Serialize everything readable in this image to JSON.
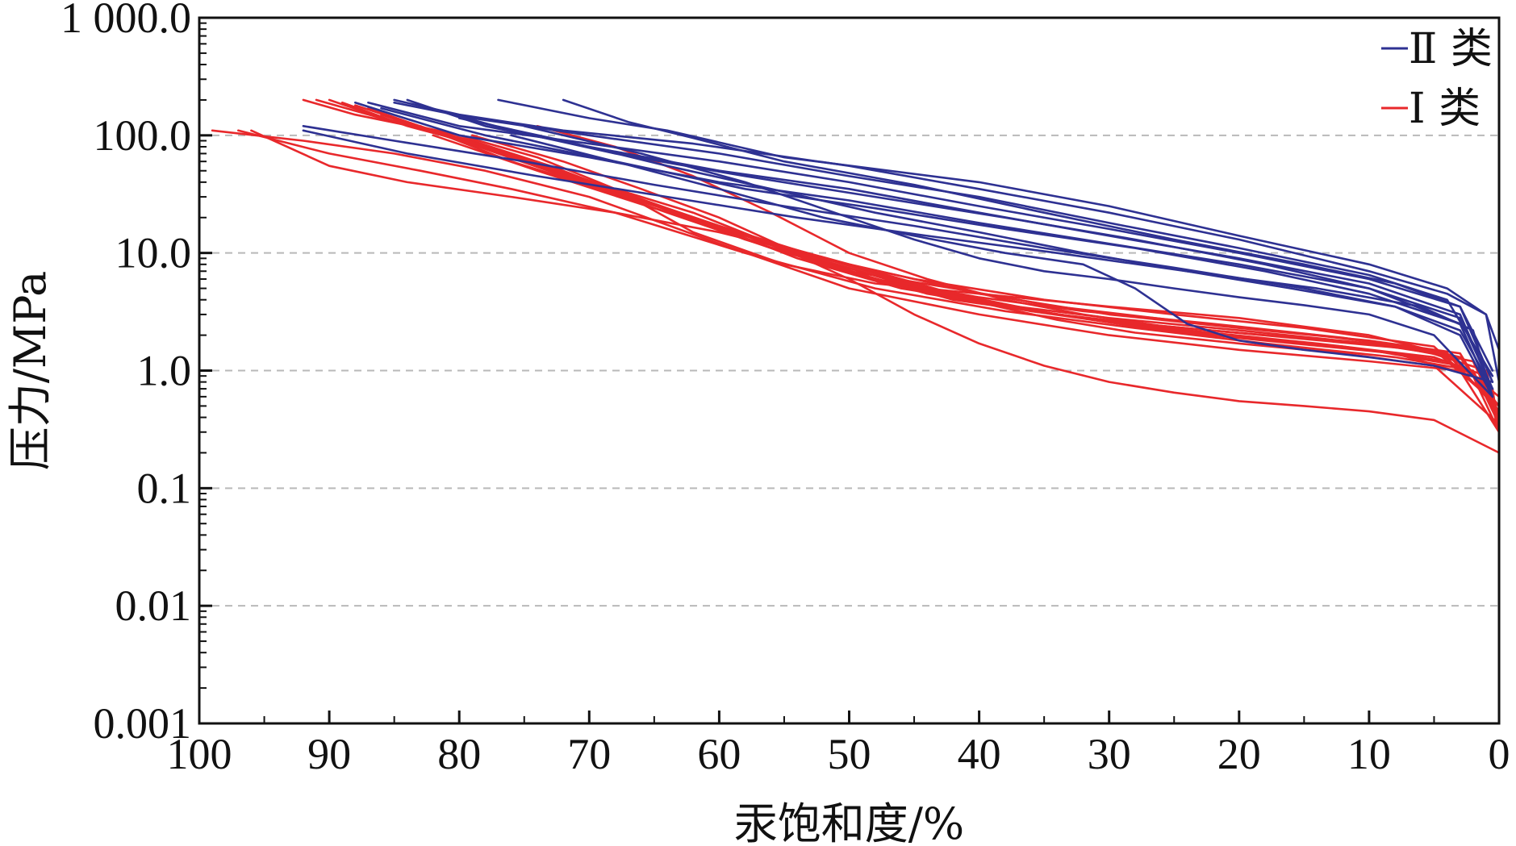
{
  "chart_data": {
    "type": "line",
    "xlabel": "汞饱和度/%",
    "ylabel": "压力/MPa",
    "x_reversed": true,
    "xlim": [
      100,
      0
    ],
    "ylim": [
      0.001,
      1000
    ],
    "y_scale": "log",
    "x_ticks": [
      100,
      90,
      80,
      70,
      60,
      50,
      40,
      30,
      20,
      10,
      0
    ],
    "x_tick_labels": [
      "100",
      "90",
      "80",
      "70",
      "60",
      "50",
      "40",
      "30",
      "20",
      "10",
      "0"
    ],
    "y_ticks": [
      0.001,
      0.01,
      0.1,
      1,
      10,
      100,
      1000
    ],
    "y_tick_labels": [
      "0.001",
      "0.01",
      "0.1",
      "1.0",
      "10.0",
      "100.0",
      "1 000.0"
    ],
    "grid": "horizontal dashed at y ticks",
    "legend_position": "top-right",
    "legend": [
      {
        "label": "Ⅱ 类",
        "color": "#2e3192"
      },
      {
        "label": "Ⅰ 类",
        "color": "#e8282b"
      }
    ],
    "series": [
      {
        "group": "Ⅱ 类",
        "color": "#2e3192",
        "x": [
          77,
          70,
          64,
          55,
          40,
          30,
          20,
          10,
          4,
          1,
          0
        ],
        "y": [
          200,
          140,
          110,
          65,
          40,
          25,
          14,
          8,
          5,
          3,
          1.5
        ]
      },
      {
        "group": "Ⅱ 类",
        "color": "#2e3192",
        "x": [
          72,
          67,
          62,
          55,
          45,
          35,
          25,
          15,
          8,
          3,
          0.5
        ],
        "y": [
          200,
          130,
          95,
          60,
          38,
          22,
          13,
          8,
          5.5,
          3.5,
          1.0
        ]
      },
      {
        "group": "Ⅱ 类",
        "color": "#2e3192",
        "x": [
          85,
          80,
          72,
          62,
          50,
          40,
          30,
          20,
          10,
          4,
          1,
          0
        ],
        "y": [
          200,
          150,
          110,
          85,
          55,
          35,
          22,
          13,
          7,
          4.5,
          3,
          0.8
        ]
      },
      {
        "group": "Ⅱ 类",
        "color": "#2e3192",
        "x": [
          85,
          79,
          70,
          60,
          50,
          40,
          30,
          20,
          10,
          4,
          0.5
        ],
        "y": [
          190,
          140,
          100,
          70,
          45,
          30,
          18,
          11,
          6.5,
          4,
          0.9
        ]
      },
      {
        "group": "Ⅱ 类",
        "color": "#2e3192",
        "x": [
          87,
          80,
          70,
          60,
          50,
          40,
          30,
          20,
          10,
          3,
          0.5
        ],
        "y": [
          190,
          120,
          85,
          60,
          40,
          25,
          16,
          10,
          6,
          3.5,
          0.8
        ]
      },
      {
        "group": "Ⅱ 类",
        "color": "#2e3192",
        "x": [
          84,
          78,
          70,
          60,
          50,
          40,
          30,
          20,
          10,
          3,
          0.5
        ],
        "y": [
          200,
          120,
          80,
          50,
          35,
          22,
          14,
          9,
          5.5,
          3,
          0.7
        ]
      },
      {
        "group": "Ⅱ 类",
        "color": "#2e3192",
        "x": [
          83,
          76,
          68,
          58,
          48,
          38,
          28,
          18,
          10,
          3,
          0.5
        ],
        "y": [
          180,
          110,
          70,
          45,
          30,
          20,
          13,
          8,
          5,
          2.5,
          0.6
        ]
      },
      {
        "group": "Ⅱ 类",
        "color": "#2e3192",
        "x": [
          88,
          80,
          70,
          60,
          50,
          40,
          30,
          20,
          10,
          3,
          0.5
        ],
        "y": [
          190,
          100,
          65,
          40,
          28,
          18,
          12,
          8,
          5,
          2.8,
          0.7
        ]
      },
      {
        "group": "Ⅱ 类",
        "color": "#2e3192",
        "x": [
          86,
          78,
          68,
          58,
          48,
          38,
          28,
          18,
          10,
          3,
          0.5
        ],
        "y": [
          170,
          100,
          60,
          35,
          24,
          16,
          11,
          7,
          4.5,
          2.5,
          0.6
        ]
      },
      {
        "group": "Ⅱ 类",
        "color": "#2e3192",
        "x": [
          92,
          85,
          75,
          65,
          55,
          45,
          35,
          25,
          15,
          8,
          3,
          0.5
        ],
        "y": [
          120,
          90,
          60,
          38,
          25,
          17,
          11,
          7.5,
          5,
          3.5,
          2,
          0.6
        ]
      },
      {
        "group": "Ⅱ 类",
        "color": "#2e3192",
        "x": [
          80,
          72,
          64,
          56,
          48,
          40,
          32,
          24,
          16,
          8,
          3,
          0.5
        ],
        "y": [
          140,
          90,
          55,
          35,
          22,
          15,
          10,
          7,
          5,
          3.5,
          2.2,
          0.7
        ]
      },
      {
        "group": "Ⅱ 类",
        "color": "#2e3192",
        "x": [
          75,
          66,
          58,
          50,
          45,
          40,
          35,
          30,
          25,
          20,
          15,
          10,
          5,
          0.5
        ],
        "y": [
          120,
          70,
          40,
          20,
          13,
          9,
          7,
          6,
          5,
          4.2,
          3.6,
          3,
          2,
          0.6
        ]
      },
      {
        "group": "Ⅱ 类",
        "color": "#2e3192",
        "x": [
          76,
          68,
          60,
          52,
          45,
          38,
          32,
          28,
          24,
          20,
          15,
          10,
          5,
          0.5
        ],
        "y": [
          100,
          60,
          35,
          20,
          14,
          10,
          8,
          5,
          2.5,
          1.8,
          1.5,
          1.3,
          1.1,
          0.8
        ]
      },
      {
        "group": "Ⅱ 类",
        "color": "#2e3192",
        "x": [
          92,
          84,
          74,
          64,
          54,
          44,
          34,
          24,
          14,
          6,
          2,
          0.5
        ],
        "y": [
          110,
          70,
          45,
          30,
          20,
          14,
          10,
          7,
          5,
          3.5,
          2.2,
          0.6
        ]
      },
      {
        "group": "Ⅰ 类",
        "color": "#e8282b",
        "x": [
          99,
          92,
          85,
          78,
          70,
          60,
          50,
          40,
          30,
          20,
          10,
          3,
          0
        ],
        "y": [
          110,
          90,
          70,
          50,
          30,
          12,
          5,
          3,
          2,
          1.5,
          1.2,
          1.0,
          0.3
        ]
      },
      {
        "group": "Ⅰ 类",
        "color": "#e8282b",
        "x": [
          97,
          90,
          83,
          76,
          68,
          58,
          48,
          38,
          28,
          18,
          8,
          2,
          0
        ],
        "y": [
          110,
          70,
          50,
          35,
          22,
          10,
          5,
          3.2,
          2.3,
          1.7,
          1.3,
          1.0,
          0.35
        ]
      },
      {
        "group": "Ⅰ 类",
        "color": "#e8282b",
        "x": [
          96,
          90,
          84,
          76,
          68,
          60,
          50,
          40,
          30,
          20,
          10,
          3,
          0
        ],
        "y": [
          110,
          55,
          40,
          30,
          22,
          15,
          8,
          4.5,
          3,
          2.3,
          1.8,
          1.4,
          0.4
        ]
      },
      {
        "group": "Ⅰ 类",
        "color": "#e8282b",
        "x": [
          92,
          88,
          82,
          76,
          70,
          62,
          54,
          45,
          35,
          25,
          15,
          5,
          0
        ],
        "y": [
          200,
          150,
          110,
          70,
          40,
          20,
          10,
          6,
          4,
          3,
          2.3,
          1.6,
          0.5
        ]
      },
      {
        "group": "Ⅰ 类",
        "color": "#e8282b",
        "x": [
          91,
          86,
          80,
          74,
          68,
          62,
          55,
          48,
          40,
          30,
          20,
          10,
          3,
          0
        ],
        "y": [
          200,
          140,
          100,
          65,
          35,
          15,
          8,
          5.5,
          4.5,
          3.5,
          2.8,
          2,
          1.3,
          0.5
        ]
      },
      {
        "group": "Ⅰ 类",
        "color": "#e8282b",
        "x": [
          90,
          85,
          79,
          73,
          66,
          58,
          50,
          42,
          34,
          24,
          14,
          5,
          0
        ],
        "y": [
          200,
          130,
          90,
          55,
          28,
          13,
          7,
          5,
          3.5,
          2.6,
          2,
          1.5,
          0.5
        ]
      },
      {
        "group": "Ⅰ 类",
        "color": "#e8282b",
        "x": [
          89,
          84,
          78,
          72,
          64,
          56,
          48,
          40,
          32,
          22,
          12,
          4,
          0
        ],
        "y": [
          190,
          120,
          80,
          45,
          22,
          11,
          6,
          4.2,
          3.2,
          2.5,
          1.9,
          1.4,
          0.45
        ]
      },
      {
        "group": "Ⅰ 类",
        "color": "#e8282b",
        "x": [
          88,
          82,
          76,
          70,
          62,
          54,
          46,
          38,
          30,
          20,
          10,
          3,
          0
        ],
        "y": [
          180,
          110,
          70,
          40,
          20,
          9,
          5,
          3.6,
          2.8,
          2.2,
          1.7,
          1.3,
          0.45
        ]
      },
      {
        "group": "Ⅰ 类",
        "color": "#e8282b",
        "x": [
          87,
          81,
          75,
          68,
          60,
          52,
          44,
          36,
          28,
          18,
          8,
          2,
          0
        ],
        "y": [
          170,
          100,
          60,
          33,
          17,
          8,
          4.5,
          3.2,
          2.5,
          2,
          1.6,
          1.2,
          0.4
        ]
      },
      {
        "group": "Ⅰ 类",
        "color": "#e8282b",
        "x": [
          86,
          80,
          73,
          66,
          58,
          50,
          42,
          34,
          26,
          16,
          6,
          1,
          0
        ],
        "y": [
          150,
          90,
          52,
          28,
          14,
          7,
          4,
          3,
          2.4,
          1.9,
          1.5,
          1.0,
          0.4
        ]
      },
      {
        "group": "Ⅰ 类",
        "color": "#e8282b",
        "x": [
          85,
          78,
          71,
          64,
          56,
          48,
          40,
          32,
          24,
          14,
          5,
          1,
          0
        ],
        "y": [
          140,
          80,
          45,
          24,
          12,
          6,
          3.8,
          2.8,
          2.2,
          1.7,
          1.3,
          0.9,
          0.35
        ]
      },
      {
        "group": "Ⅰ 类",
        "color": "#e8282b",
        "x": [
          84,
          77,
          70,
          62,
          54,
          46,
          38,
          30,
          22,
          12,
          4,
          1,
          0
        ],
        "y": [
          130,
          70,
          38,
          20,
          10,
          5.5,
          3.5,
          2.6,
          2,
          1.6,
          1.2,
          0.8,
          0.3
        ]
      },
      {
        "group": "Ⅰ 类",
        "color": "#e8282b",
        "x": [
          83,
          76,
          68,
          60,
          52,
          44,
          36,
          28,
          20,
          10,
          3,
          0.5,
          0
        ],
        "y": [
          120,
          60,
          32,
          17,
          9,
          5,
          3.2,
          2.4,
          1.9,
          1.5,
          1.1,
          0.7,
          0.3
        ]
      },
      {
        "group": "Ⅰ 类",
        "color": "#e8282b",
        "x": [
          82,
          74,
          66,
          58,
          50,
          42,
          34,
          26,
          18,
          8,
          2,
          0
        ],
        "y": [
          100,
          50,
          26,
          14,
          8,
          4.5,
          3,
          2.2,
          1.8,
          1.4,
          0.9,
          0.3
        ]
      },
      {
        "group": "Ⅰ 类",
        "color": "#e8282b",
        "x": [
          74,
          68,
          62,
          56,
          50,
          44,
          38,
          32,
          26,
          18,
          10,
          4,
          0
        ],
        "y": [
          120,
          80,
          45,
          22,
          10,
          6,
          4,
          3,
          2.4,
          2,
          1.7,
          1.4,
          0.6
        ]
      },
      {
        "group": "Ⅰ 类",
        "color": "#e8282b",
        "x": [
          79,
          72,
          66,
          60,
          54,
          47,
          40,
          34,
          28,
          20,
          12,
          5,
          0
        ],
        "y": [
          100,
          60,
          35,
          20,
          10,
          6,
          3.8,
          2.7,
          2.1,
          1.7,
          1.4,
          1.1,
          0.35
        ]
      },
      {
        "group": "Ⅰ 类",
        "color": "#e8282b",
        "x": [
          68,
          62,
          56,
          50,
          45,
          40,
          35,
          30,
          25,
          20,
          15,
          10,
          5,
          0
        ],
        "y": [
          35,
          22,
          12,
          6,
          3,
          1.7,
          1.1,
          0.8,
          0.65,
          0.55,
          0.5,
          0.45,
          0.38,
          0.2
        ]
      }
    ]
  }
}
